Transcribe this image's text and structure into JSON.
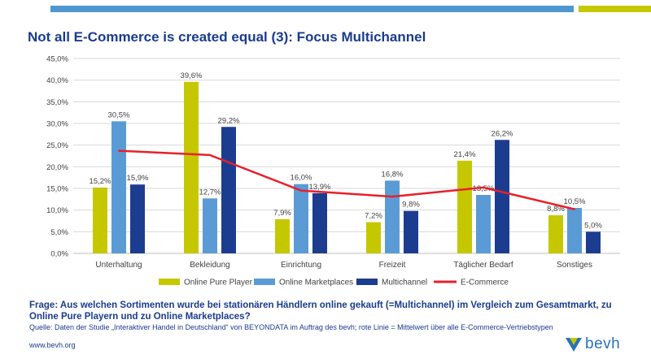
{
  "title": "Not all E-Commerce is created equal (3): Focus Multichannel",
  "colors": {
    "pure_player": "#c5c800",
    "marketplaces": "#5b9bd5",
    "multichannel": "#1c3d8f",
    "ecommerce": "#e8202a",
    "text_blue": "#1a3c8c"
  },
  "chart_data": {
    "type": "bar",
    "categories": [
      "Unterhaltung",
      "Bekleidung",
      "Einrichtung",
      "Freizeit",
      "Täglicher Bedarf",
      "Sonstiges"
    ],
    "ylim": [
      0,
      45
    ],
    "yticks": [
      "0,0%",
      "5,0%",
      "10,0%",
      "15,0%",
      "20,0%",
      "25,0%",
      "30,0%",
      "35,0%",
      "40,0%",
      "45,0%"
    ],
    "grid": true,
    "legend_position": "bottom",
    "series": [
      {
        "name": "Online Pure Player",
        "color": "#c5c800",
        "values": [
          15.2,
          39.6,
          7.9,
          7.2,
          21.4,
          8.8
        ],
        "labels": [
          "15,2%",
          "39,6%",
          "7,9%",
          "7,2%",
          "21,4%",
          "8,8%"
        ]
      },
      {
        "name": "Online Marketplaces",
        "color": "#5b9bd5",
        "values": [
          30.5,
          12.7,
          16.0,
          16.8,
          13.5,
          10.5
        ],
        "labels": [
          "30,5%",
          "12,7%",
          "16,0%",
          "16,8%",
          "13,5%",
          "10,5%"
        ]
      },
      {
        "name": "Multichannel",
        "color": "#1c3d8f",
        "values": [
          15.9,
          29.2,
          13.9,
          9.8,
          26.2,
          5.0
        ],
        "labels": [
          "15,9%",
          "29,2%",
          "13,9%",
          "9,8%",
          "26,2%",
          "5,0%"
        ]
      }
    ],
    "line": {
      "name": "E-Commerce",
      "color": "#e8202a",
      "values": [
        23.7,
        22.7,
        14.5,
        13.1,
        15.2,
        10.2
      ]
    }
  },
  "question": "Frage: Aus welchen Sortimenten wurde bei stationären Händlern online gekauft (=Multichannel) im Vergleich zum Gesamtmarkt, zu Online Pure Playern und zu Online Marketplaces?",
  "source": "Quelle: Daten der Studie „Interaktiver Handel in Deutschland“ von BEYONDATA im Auftrag des bevh; rote Linie = Mittelwert über alle E-Commerce-Vertriebstypen",
  "website": "www.bevh.org",
  "logo_text": "bevh"
}
